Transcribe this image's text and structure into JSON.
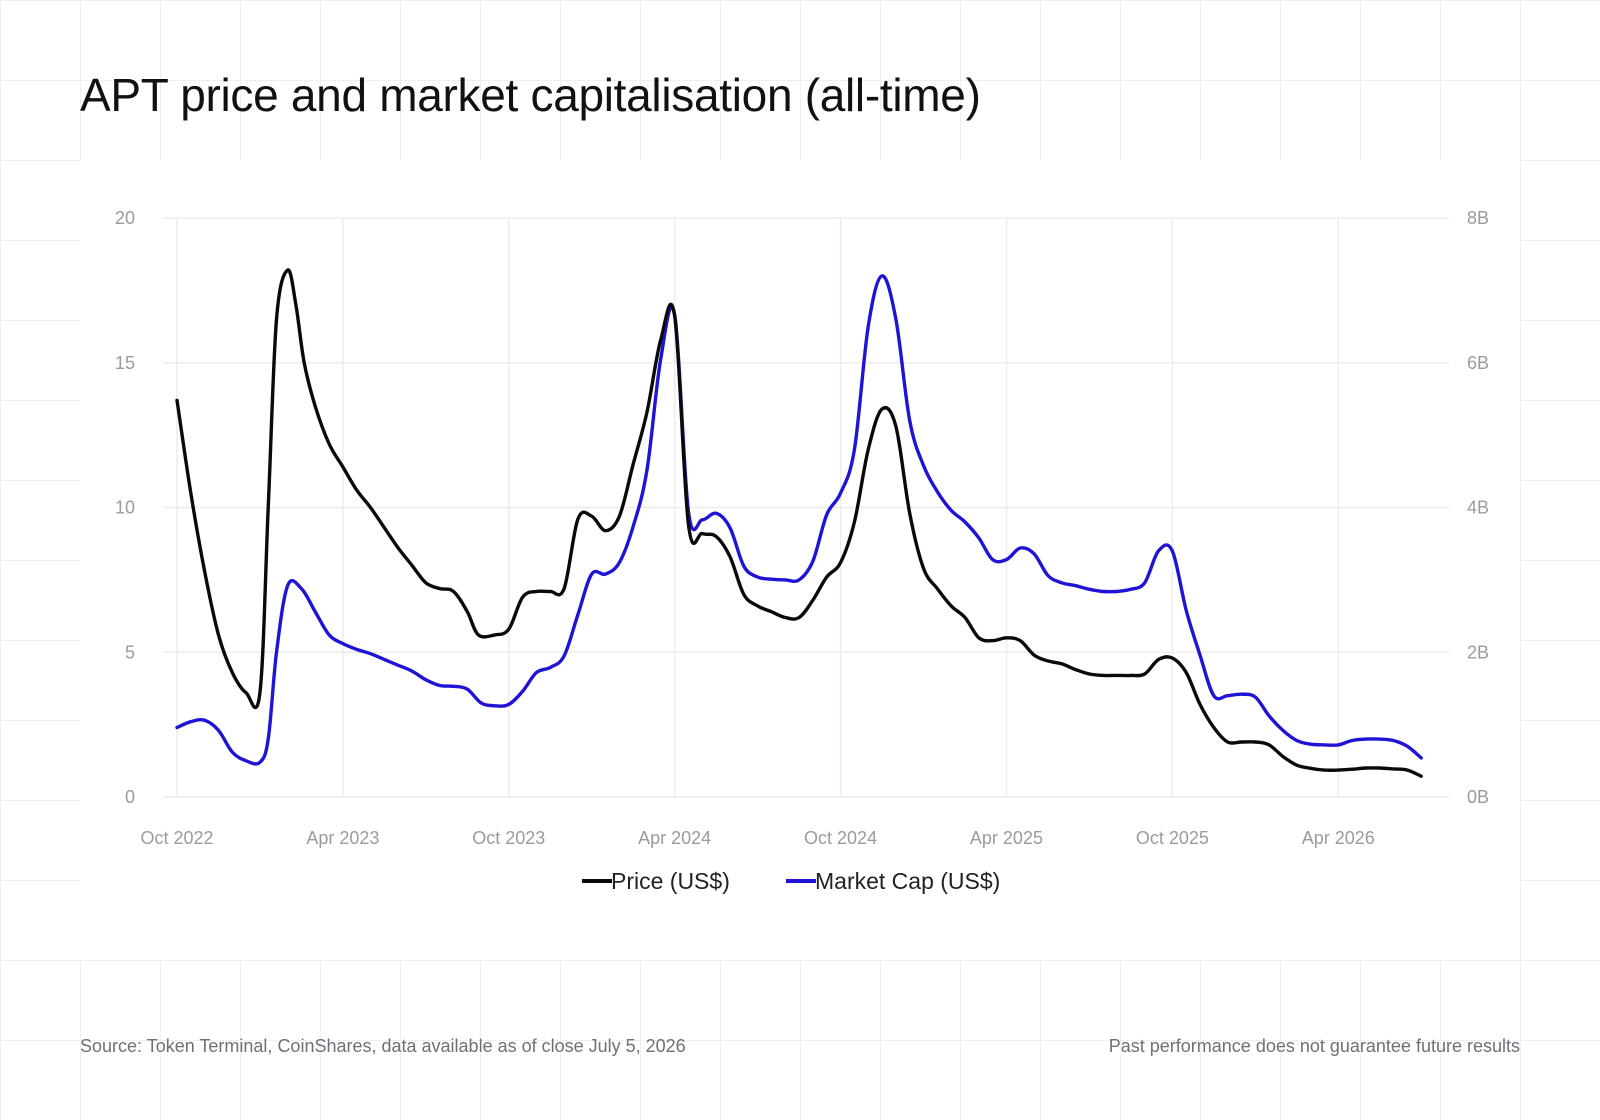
{
  "title": "APT price and market capitalisation (all-time)",
  "footer": {
    "source": "Source: Token Terminal, CoinShares, data available as of close July 5, 2026",
    "disclaimer": "Past performance does not guarantee future results"
  },
  "colors": {
    "price": "#0a0a0a",
    "market_cap": "#1f14d6",
    "grid": "#ececef",
    "tick_text": "#9a9aa2"
  },
  "chart_data": {
    "type": "line",
    "x_unit": "months since Oct 2022",
    "xlim": [
      0,
      45.5
    ],
    "x_ticks": [
      {
        "x": 0,
        "label": "Oct 2022"
      },
      {
        "x": 6,
        "label": "Apr 2023"
      },
      {
        "x": 12,
        "label": "Oct 2023"
      },
      {
        "x": 18,
        "label": "Apr 2024"
      },
      {
        "x": 24,
        "label": "Oct 2024"
      },
      {
        "x": 30,
        "label": "Apr 2025"
      },
      {
        "x": 36,
        "label": "Oct 2025"
      },
      {
        "x": 42,
        "label": "Apr 2026"
      }
    ],
    "y_left": {
      "lim": [
        0,
        20
      ],
      "ticks": [
        0,
        5,
        10,
        15,
        20
      ],
      "labels": [
        "0",
        "5",
        "10",
        "15",
        "20"
      ]
    },
    "y_right": {
      "lim": [
        0,
        8000000000
      ],
      "ticks": [
        0,
        2000000000,
        4000000000,
        6000000000,
        8000000000
      ],
      "labels": [
        "0B",
        "2B",
        "4B",
        "6B",
        "8B"
      ]
    },
    "grid": true,
    "legend_position": "bottom-center",
    "series": [
      {
        "name": "Price (US$)",
        "axis": "left",
        "color": "#0a0a0a",
        "points": [
          [
            0.0,
            13.7
          ],
          [
            0.5,
            10.5
          ],
          [
            1.0,
            7.8
          ],
          [
            1.5,
            5.6
          ],
          [
            2.0,
            4.3
          ],
          [
            2.5,
            3.6
          ],
          [
            3.0,
            3.6
          ],
          [
            3.3,
            10.0
          ],
          [
            3.6,
            16.5
          ],
          [
            4.0,
            18.2
          ],
          [
            4.3,
            17.0
          ],
          [
            4.6,
            15.0
          ],
          [
            5.0,
            13.5
          ],
          [
            5.5,
            12.2
          ],
          [
            6.0,
            11.4
          ],
          [
            6.5,
            10.6
          ],
          [
            7.0,
            10.0
          ],
          [
            7.5,
            9.3
          ],
          [
            8.0,
            8.6
          ],
          [
            8.5,
            8.0
          ],
          [
            9.0,
            7.4
          ],
          [
            9.5,
            7.2
          ],
          [
            10.0,
            7.1
          ],
          [
            10.5,
            6.4
          ],
          [
            10.9,
            5.6
          ],
          [
            11.5,
            5.6
          ],
          [
            12.0,
            5.8
          ],
          [
            12.5,
            6.9
          ],
          [
            13.0,
            7.1
          ],
          [
            13.5,
            7.1
          ],
          [
            14.0,
            7.2
          ],
          [
            14.5,
            9.6
          ],
          [
            15.0,
            9.7
          ],
          [
            15.5,
            9.2
          ],
          [
            16.0,
            9.7
          ],
          [
            16.5,
            11.5
          ],
          [
            17.0,
            13.3
          ],
          [
            17.5,
            15.8
          ],
          [
            18.0,
            16.6
          ],
          [
            18.5,
            9.4
          ],
          [
            19.0,
            9.1
          ],
          [
            19.5,
            9.0
          ],
          [
            20.0,
            8.3
          ],
          [
            20.5,
            7.0
          ],
          [
            21.0,
            6.6
          ],
          [
            21.5,
            6.4
          ],
          [
            22.0,
            6.2
          ],
          [
            22.5,
            6.2
          ],
          [
            23.0,
            6.8
          ],
          [
            23.5,
            7.6
          ],
          [
            24.0,
            8.1
          ],
          [
            24.5,
            9.5
          ],
          [
            25.0,
            12.0
          ],
          [
            25.5,
            13.4
          ],
          [
            26.0,
            12.8
          ],
          [
            26.5,
            9.8
          ],
          [
            27.0,
            7.9
          ],
          [
            27.5,
            7.2
          ],
          [
            28.0,
            6.6
          ],
          [
            28.5,
            6.2
          ],
          [
            29.0,
            5.5
          ],
          [
            29.5,
            5.4
          ],
          [
            30.0,
            5.5
          ],
          [
            30.5,
            5.4
          ],
          [
            31.0,
            4.9
          ],
          [
            31.5,
            4.7
          ],
          [
            32.0,
            4.6
          ],
          [
            32.5,
            4.4
          ],
          [
            33.0,
            4.25
          ],
          [
            33.5,
            4.2
          ],
          [
            34.0,
            4.2
          ],
          [
            34.5,
            4.2
          ],
          [
            35.0,
            4.25
          ],
          [
            35.5,
            4.75
          ],
          [
            36.0,
            4.8
          ],
          [
            36.5,
            4.3
          ],
          [
            37.0,
            3.2
          ],
          [
            37.5,
            2.4
          ],
          [
            38.0,
            1.9
          ],
          [
            38.5,
            1.9
          ],
          [
            39.0,
            1.9
          ],
          [
            39.5,
            1.8
          ],
          [
            40.0,
            1.4
          ],
          [
            40.5,
            1.1
          ],
          [
            41.0,
            0.99
          ],
          [
            41.5,
            0.93
          ],
          [
            42.0,
            0.93
          ],
          [
            42.5,
            0.96
          ],
          [
            43.0,
            1.0
          ],
          [
            43.5,
            1.0
          ],
          [
            44.0,
            0.97
          ],
          [
            44.5,
            0.93
          ],
          [
            45.0,
            0.72
          ]
        ]
      },
      {
        "name": "Market Cap (US$)",
        "axis": "right",
        "color": "#1f14d6",
        "points": [
          [
            0.0,
            960000000
          ],
          [
            0.5,
            1040000000
          ],
          [
            1.0,
            1060000000
          ],
          [
            1.5,
            920000000
          ],
          [
            2.0,
            620000000
          ],
          [
            2.5,
            500000000
          ],
          [
            3.0,
            480000000
          ],
          [
            3.3,
            800000000
          ],
          [
            3.6,
            2000000000
          ],
          [
            4.0,
            2920000000
          ],
          [
            4.5,
            2880000000
          ],
          [
            5.0,
            2560000000
          ],
          [
            5.5,
            2240000000
          ],
          [
            6.0,
            2120000000
          ],
          [
            6.5,
            2040000000
          ],
          [
            7.0,
            1980000000
          ],
          [
            7.5,
            1900000000
          ],
          [
            8.0,
            1820000000
          ],
          [
            8.5,
            1740000000
          ],
          [
            9.0,
            1620000000
          ],
          [
            9.5,
            1540000000
          ],
          [
            10.0,
            1530000000
          ],
          [
            10.5,
            1490000000
          ],
          [
            11.0,
            1300000000
          ],
          [
            11.5,
            1260000000
          ],
          [
            12.0,
            1280000000
          ],
          [
            12.5,
            1460000000
          ],
          [
            13.0,
            1720000000
          ],
          [
            13.5,
            1790000000
          ],
          [
            14.0,
            1950000000
          ],
          [
            14.5,
            2520000000
          ],
          [
            15.0,
            3080000000
          ],
          [
            15.5,
            3080000000
          ],
          [
            16.0,
            3240000000
          ],
          [
            16.5,
            3740000000
          ],
          [
            17.0,
            4520000000
          ],
          [
            17.5,
            6060000000
          ],
          [
            18.0,
            6660000000
          ],
          [
            18.5,
            3940000000
          ],
          [
            19.0,
            3830000000
          ],
          [
            19.5,
            3920000000
          ],
          [
            20.0,
            3720000000
          ],
          [
            20.5,
            3190000000
          ],
          [
            21.0,
            3040000000
          ],
          [
            21.5,
            3010000000
          ],
          [
            22.0,
            3000000000
          ],
          [
            22.5,
            3000000000
          ],
          [
            23.0,
            3260000000
          ],
          [
            23.5,
            3900000000
          ],
          [
            24.0,
            4200000000
          ],
          [
            24.5,
            4800000000
          ],
          [
            25.0,
            6500000000
          ],
          [
            25.5,
            7200000000
          ],
          [
            26.0,
            6600000000
          ],
          [
            26.5,
            5200000000
          ],
          [
            27.0,
            4580000000
          ],
          [
            27.5,
            4220000000
          ],
          [
            28.0,
            3960000000
          ],
          [
            28.5,
            3800000000
          ],
          [
            29.0,
            3580000000
          ],
          [
            29.5,
            3280000000
          ],
          [
            30.0,
            3280000000
          ],
          [
            30.5,
            3440000000
          ],
          [
            31.0,
            3360000000
          ],
          [
            31.5,
            3060000000
          ],
          [
            32.0,
            2960000000
          ],
          [
            32.5,
            2920000000
          ],
          [
            33.0,
            2870000000
          ],
          [
            33.5,
            2840000000
          ],
          [
            34.0,
            2840000000
          ],
          [
            34.5,
            2870000000
          ],
          [
            35.0,
            2960000000
          ],
          [
            35.5,
            3400000000
          ],
          [
            36.0,
            3400000000
          ],
          [
            36.5,
            2580000000
          ],
          [
            37.0,
            1960000000
          ],
          [
            37.5,
            1400000000
          ],
          [
            38.0,
            1400000000
          ],
          [
            38.5,
            1420000000
          ],
          [
            39.0,
            1380000000
          ],
          [
            39.5,
            1120000000
          ],
          [
            40.0,
            920000000
          ],
          [
            40.5,
            780000000
          ],
          [
            41.0,
            730000000
          ],
          [
            41.5,
            720000000
          ],
          [
            42.0,
            720000000
          ],
          [
            42.5,
            780000000
          ],
          [
            43.0,
            800000000
          ],
          [
            43.5,
            800000000
          ],
          [
            44.0,
            780000000
          ],
          [
            44.5,
            700000000
          ],
          [
            45.0,
            540000000
          ]
        ]
      }
    ]
  }
}
